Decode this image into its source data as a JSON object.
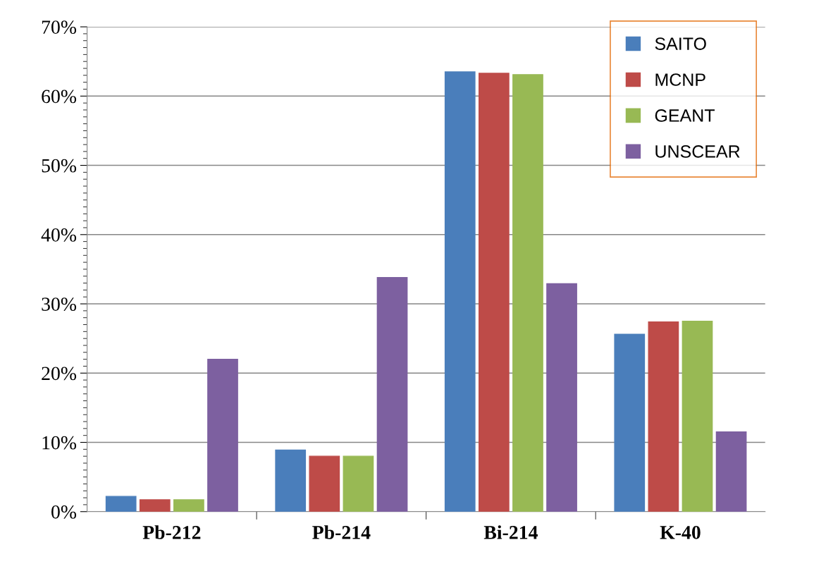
{
  "chart_data": {
    "type": "bar",
    "categories": [
      "Pb-212",
      "Pb-214",
      "Bi-214",
      "K-40"
    ],
    "series": [
      {
        "name": "SAITO",
        "color": "#4a7ebb",
        "values": [
          2.2,
          8.9,
          63.5,
          25.6
        ]
      },
      {
        "name": "MCNP",
        "color": "#be4b48",
        "values": [
          1.7,
          8.0,
          63.3,
          27.4
        ]
      },
      {
        "name": "GEANT",
        "color": "#98b954",
        "values": [
          1.7,
          8.0,
          63.1,
          27.5
        ]
      },
      {
        "name": "UNSCEAR",
        "color": "#7d60a0",
        "values": [
          22.0,
          33.8,
          32.9,
          11.5
        ]
      }
    ],
    "ylim": [
      0,
      70
    ],
    "yticks": [
      {
        "value": 0,
        "label": "0%"
      },
      {
        "value": 10,
        "label": "10%"
      },
      {
        "value": 20,
        "label": "20%"
      },
      {
        "value": 30,
        "label": "30%"
      },
      {
        "value": 40,
        "label": "40%"
      },
      {
        "value": 50,
        "label": "50%"
      },
      {
        "value": 60,
        "label": "60%"
      },
      {
        "value": 70,
        "label": "70%"
      }
    ],
    "grid": "y",
    "legend": "top right"
  }
}
